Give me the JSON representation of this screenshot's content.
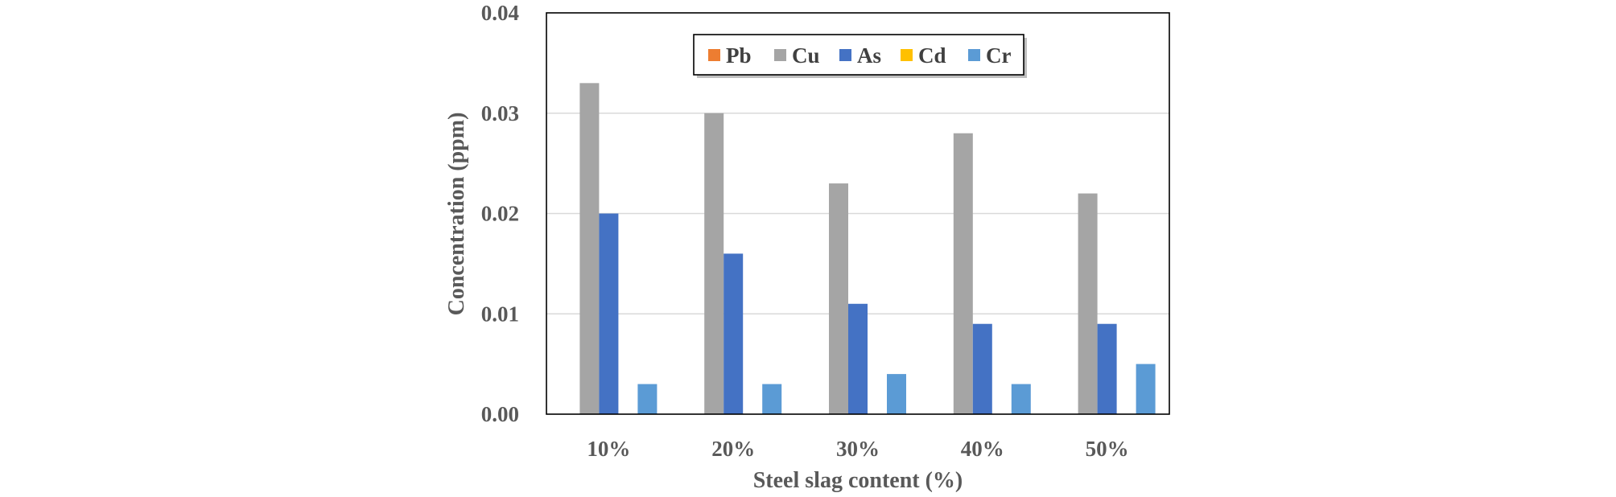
{
  "chart_data": {
    "type": "bar",
    "title": "",
    "xlabel": "Steel slag content (%)",
    "ylabel": "Concentration (ppm)",
    "ylim": [
      0,
      0.04
    ],
    "yticks": [
      "0.00",
      "0.01",
      "0.02",
      "0.03",
      "0.04"
    ],
    "ytick_values": [
      0,
      0.01,
      0.02,
      0.03,
      0.04
    ],
    "grid": true,
    "legend_position": "top-center",
    "categories": [
      "10%",
      "20%",
      "30%",
      "40%",
      "50%"
    ],
    "series": [
      {
        "name": "Pb",
        "color": "#ED7D31",
        "values": [
          0,
          0,
          0,
          0,
          0
        ]
      },
      {
        "name": "Cu",
        "color": "#A5A5A5",
        "values": [
          0.033,
          0.03,
          0.023,
          0.028,
          0.022
        ]
      },
      {
        "name": "As",
        "color": "#4472C4",
        "values": [
          0.02,
          0.016,
          0.011,
          0.009,
          0.009
        ]
      },
      {
        "name": "Cd",
        "color": "#FFC000",
        "values": [
          0,
          0,
          0,
          0,
          0
        ]
      },
      {
        "name": "Cr",
        "color": "#5B9BD5",
        "values": [
          0.003,
          0.003,
          0.004,
          0.003,
          0.005
        ]
      }
    ]
  }
}
